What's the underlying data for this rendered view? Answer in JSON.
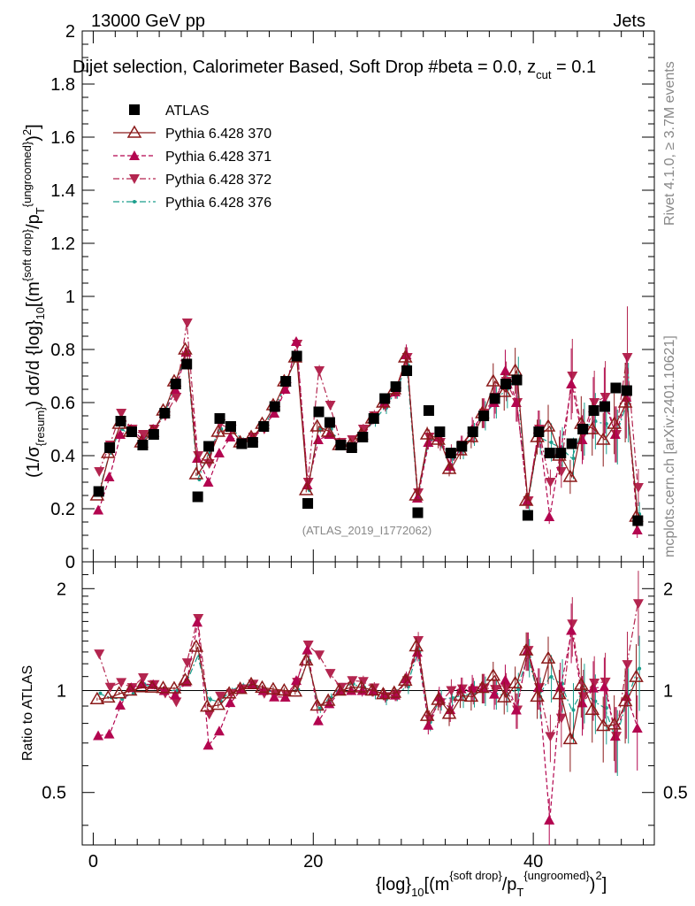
{
  "header": {
    "energy_label": "13000 GeV pp",
    "process_label": "Jets",
    "selection_label": "Dijet selection, Calorimeter Based, Soft Drop #beta = 0.0, z",
    "zcut_sub": "cut",
    "zcut_value": " = 0.1",
    "analysis_id": "(ATLAS_2019_I1772062)",
    "rivet_label": "Rivet 4.1.0, ≥ 3.7M events",
    "mcplots_label": "mcplots.cern.ch [arXiv:2401.10621]"
  },
  "axes": {
    "x_label": "{log}10[(m{soft drop}/pT{ungroomed})2]",
    "x_label_parts": {
      "pre": "{log}",
      "sub1": "10",
      "mid": "[(m",
      "sup1": "{soft drop}",
      "mid2": "/p",
      "sub2": "T",
      "sup2": "{ungroomed}",
      "post": ")",
      "sup3": "2",
      "end": "]"
    },
    "y_label_main": "(1/σ{resum}) dσ/d {log}10[(m{soft drop}/pT{ungroomed})2]",
    "y_label_parts": {
      "a": "(1/σ",
      "b": "{resum}",
      "c": ") dσ/d {log}",
      "d": "10",
      "e": "[(m",
      "f": "{soft drop}",
      "g": "/p",
      "h": "T",
      "i": "{ungroomed}",
      "j": ")",
      "k": "2",
      "l": "]"
    },
    "y_label_ratio": "Ratio to ATLAS"
  },
  "legend": [
    {
      "label": "ATLAS",
      "color": "#000000",
      "marker": "square-filled",
      "line": "none"
    },
    {
      "label": "Pythia 6.428 370",
      "color": "#8b1a1a",
      "marker": "triangle-up-open",
      "line": "solid"
    },
    {
      "label": "Pythia 6.428 371",
      "color": "#b3054f",
      "marker": "triangle-up-filled",
      "line": "dashed"
    },
    {
      "label": "Pythia 6.428 372",
      "color": "#b3254f",
      "marker": "triangle-down-filled",
      "line": "dashdot"
    },
    {
      "label": "Pythia 6.428 376",
      "color": "#1a9e8c",
      "marker": "star",
      "line": "dashdot"
    }
  ],
  "chart_data": {
    "type": "scatter",
    "x_ticks": [
      "0",
      "20",
      "40"
    ],
    "y_ticks_main": [
      "0",
      "0.2",
      "0.4",
      "0.6",
      "0.8",
      "1",
      "1.2",
      "1.4",
      "1.6",
      "1.8",
      "2"
    ],
    "y_ticks_ratio": [
      "0.5",
      "1",
      "2"
    ],
    "xlim": [
      -1,
      51
    ],
    "ylim_main": [
      0,
      2.0
    ],
    "ylim_ratio": [
      0.35,
      2.4
    ],
    "x": [
      0.5,
      1.5,
      2.5,
      3.5,
      4.5,
      5.5,
      6.5,
      7.5,
      8.5,
      9.5,
      10.5,
      11.5,
      12.5,
      13.5,
      14.5,
      15.5,
      16.5,
      17.5,
      18.5,
      19.5,
      20.5,
      21.5,
      22.5,
      23.5,
      24.5,
      25.5,
      26.5,
      27.5,
      28.5,
      29.5,
      30.5,
      31.5,
      32.5,
      33.5,
      34.5,
      35.5,
      36.5,
      37.5,
      38.5,
      39.5,
      40.5,
      41.5,
      42.5,
      43.5,
      44.5,
      45.5,
      46.5,
      47.5,
      48.5,
      49.5
    ],
    "series": [
      {
        "name": "ATLAS",
        "values": [
          0.265,
          0.43,
          0.53,
          0.49,
          0.44,
          0.48,
          0.56,
          0.67,
          0.745,
          0.245,
          0.435,
          0.54,
          0.51,
          0.445,
          0.45,
          0.51,
          0.585,
          0.68,
          0.775,
          0.22,
          0.565,
          0.525,
          0.44,
          0.43,
          0.47,
          0.54,
          0.615,
          0.66,
          0.72,
          0.185,
          0.57,
          0.49,
          0.41,
          0.435,
          0.49,
          0.55,
          0.615,
          0.67,
          0.685,
          0.175,
          0.49,
          0.41,
          0.41,
          0.445,
          0.5,
          0.57,
          0.585,
          0.655,
          0.645,
          0.155
        ]
      },
      {
        "name": "Pythia 6.428 370",
        "values": [
          0.25,
          0.41,
          0.52,
          0.49,
          0.45,
          0.49,
          0.57,
          0.68,
          0.8,
          0.33,
          0.39,
          0.49,
          0.5,
          0.45,
          0.47,
          0.52,
          0.59,
          0.68,
          0.77,
          0.27,
          0.51,
          0.49,
          0.44,
          0.44,
          0.48,
          0.54,
          0.6,
          0.65,
          0.77,
          0.25,
          0.48,
          0.46,
          0.35,
          0.42,
          0.47,
          0.56,
          0.68,
          0.64,
          0.72,
          0.23,
          0.47,
          0.51,
          0.4,
          0.32,
          0.52,
          0.5,
          0.46,
          0.52,
          0.6,
          0.17
        ]
      },
      {
        "name": "Pythia 6.428 371",
        "values": [
          0.195,
          0.32,
          0.48,
          0.5,
          0.46,
          0.5,
          0.56,
          0.65,
          0.79,
          0.39,
          0.3,
          0.41,
          0.47,
          0.45,
          0.47,
          0.51,
          0.56,
          0.65,
          0.83,
          0.29,
          0.46,
          0.48,
          0.44,
          0.43,
          0.47,
          0.54,
          0.6,
          0.64,
          0.78,
          0.24,
          0.45,
          0.47,
          0.36,
          0.44,
          0.5,
          0.56,
          0.6,
          0.72,
          0.6,
          0.23,
          0.5,
          0.17,
          0.42,
          0.67,
          0.46,
          0.58,
          0.6,
          0.48,
          0.62,
          0.12
        ]
      },
      {
        "name": "Pythia 6.428 372",
        "values": [
          0.34,
          0.44,
          0.56,
          0.5,
          0.48,
          0.5,
          0.55,
          0.62,
          0.9,
          0.4,
          0.37,
          0.52,
          0.5,
          0.45,
          0.47,
          0.5,
          0.57,
          0.66,
          0.82,
          0.3,
          0.72,
          0.59,
          0.45,
          0.46,
          0.5,
          0.55,
          0.59,
          0.64,
          0.77,
          0.26,
          0.47,
          0.45,
          0.41,
          0.44,
          0.49,
          0.56,
          0.62,
          0.68,
          0.6,
          0.23,
          0.5,
          0.3,
          0.34,
          0.7,
          0.48,
          0.6,
          0.62,
          0.48,
          0.77,
          0.28
        ]
      },
      {
        "name": "Pythia 6.428 376",
        "values": [
          0.26,
          0.41,
          0.5,
          0.48,
          0.46,
          0.49,
          0.56,
          0.67,
          0.79,
          0.31,
          0.41,
          0.5,
          0.51,
          0.46,
          0.47,
          0.51,
          0.58,
          0.67,
          0.78,
          0.27,
          0.5,
          0.5,
          0.45,
          0.45,
          0.48,
          0.53,
          0.58,
          0.64,
          0.74,
          0.24,
          0.46,
          0.46,
          0.39,
          0.42,
          0.48,
          0.55,
          0.6,
          0.65,
          0.69,
          0.22,
          0.47,
          0.45,
          0.43,
          0.39,
          0.5,
          0.53,
          0.52,
          0.47,
          0.6,
          0.18
        ]
      }
    ],
    "error_fraction": [
      0.01,
      0.01,
      0.01,
      0.01,
      0.01,
      0.01,
      0.01,
      0.01,
      0.01,
      0.02,
      0.02,
      0.02,
      0.02,
      0.02,
      0.02,
      0.02,
      0.02,
      0.02,
      0.02,
      0.03,
      0.03,
      0.03,
      0.03,
      0.03,
      0.04,
      0.04,
      0.04,
      0.04,
      0.05,
      0.06,
      0.06,
      0.07,
      0.08,
      0.08,
      0.09,
      0.1,
      0.1,
      0.11,
      0.12,
      0.13,
      0.14,
      0.16,
      0.18,
      0.2,
      0.2,
      0.2,
      0.22,
      0.22,
      0.25,
      0.25
    ]
  }
}
